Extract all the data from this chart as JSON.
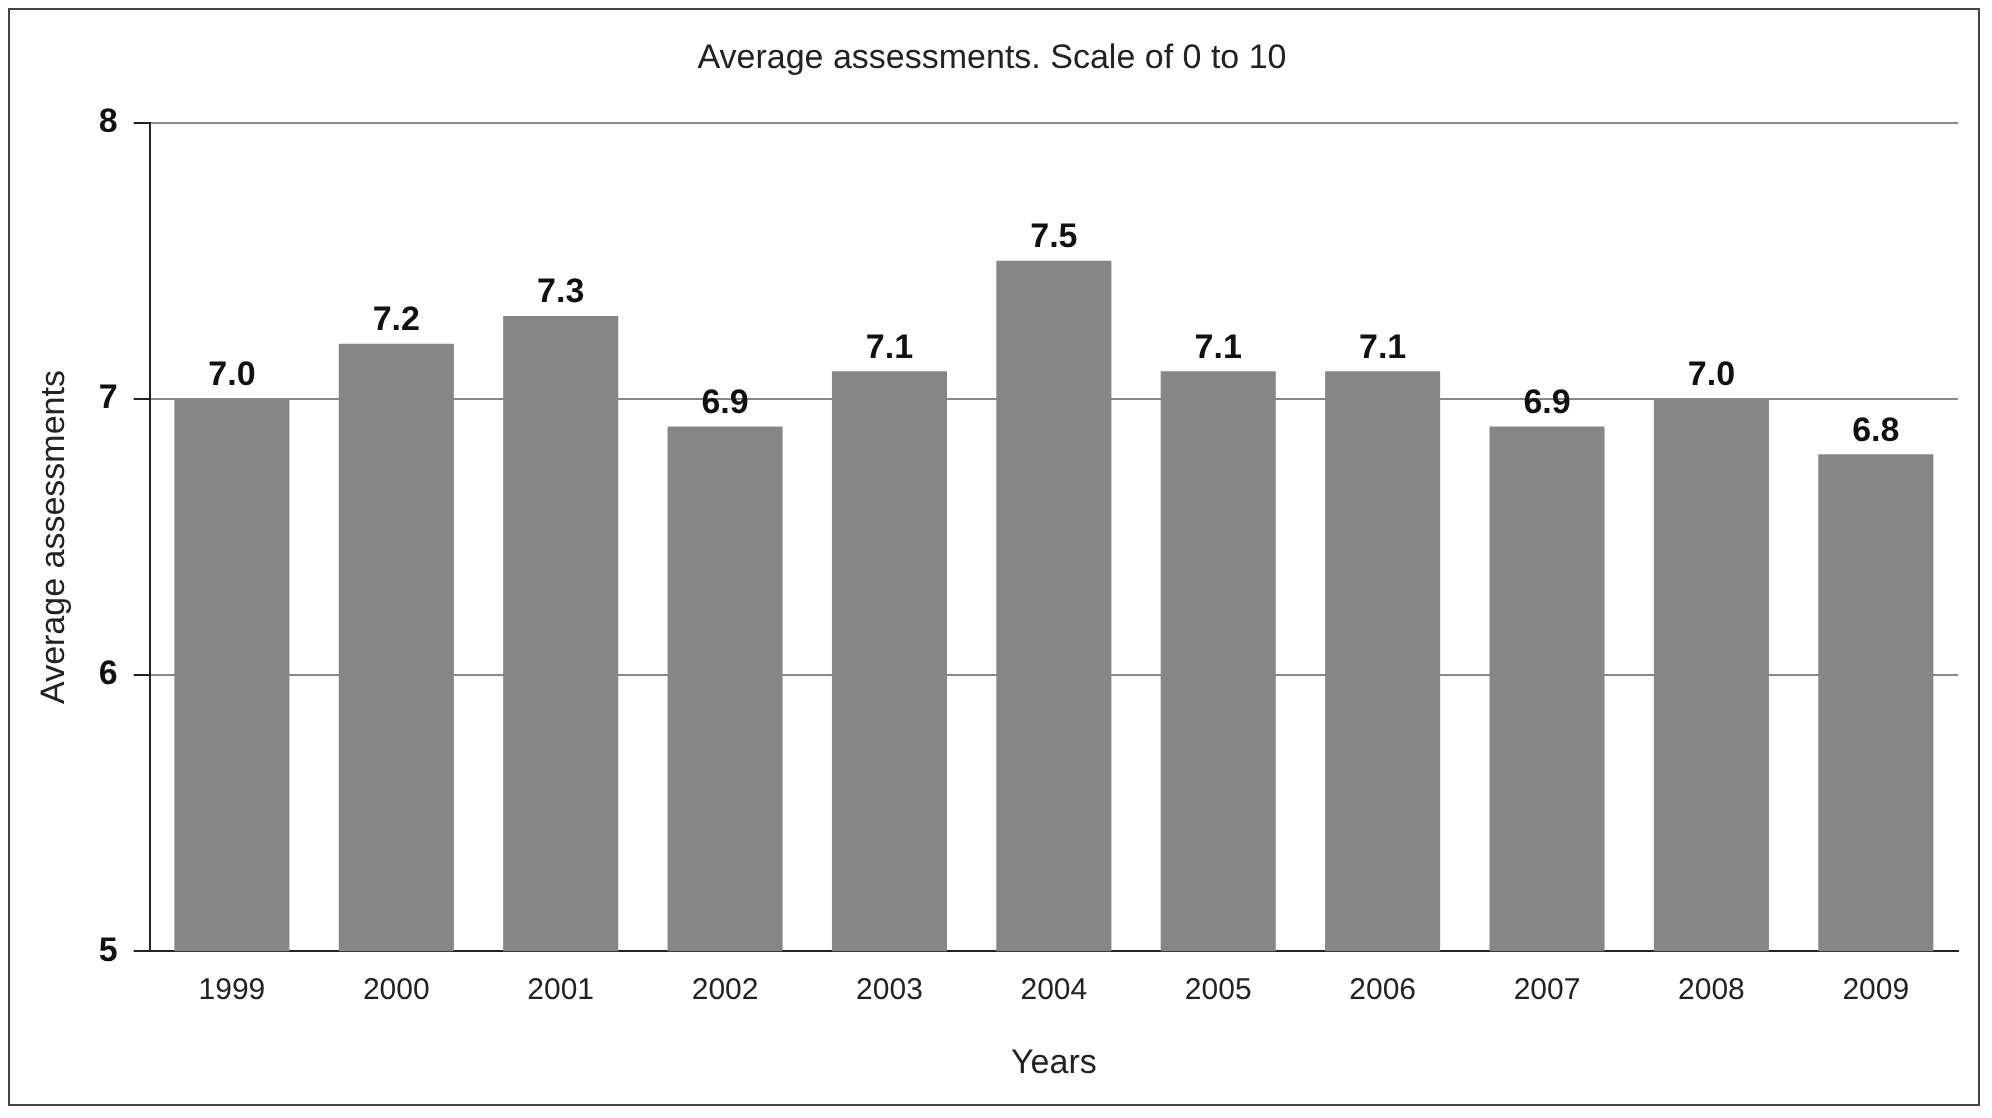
{
  "chart_data": {
    "type": "bar",
    "title": "Average assessments. Scale of 0 to 10",
    "xlabel": "Years",
    "ylabel": "Average assessments",
    "categories": [
      "1999",
      "2000",
      "2001",
      "2002",
      "2003",
      "2004",
      "2005",
      "2006",
      "2007",
      "2008",
      "2009"
    ],
    "values": [
      7.0,
      7.2,
      7.3,
      6.9,
      7.1,
      7.5,
      7.1,
      7.1,
      6.9,
      7.0,
      6.8
    ],
    "value_labels": [
      "7.0",
      "7.2",
      "7.3",
      "6.9",
      "7.1",
      "7.5",
      "7.1",
      "7.1",
      "6.9",
      "7.0",
      "6.8"
    ],
    "color": "#868686",
    "ylim": [
      5,
      8
    ],
    "yticks": [
      5,
      6,
      7,
      8
    ],
    "grid": "y",
    "legend": false
  }
}
